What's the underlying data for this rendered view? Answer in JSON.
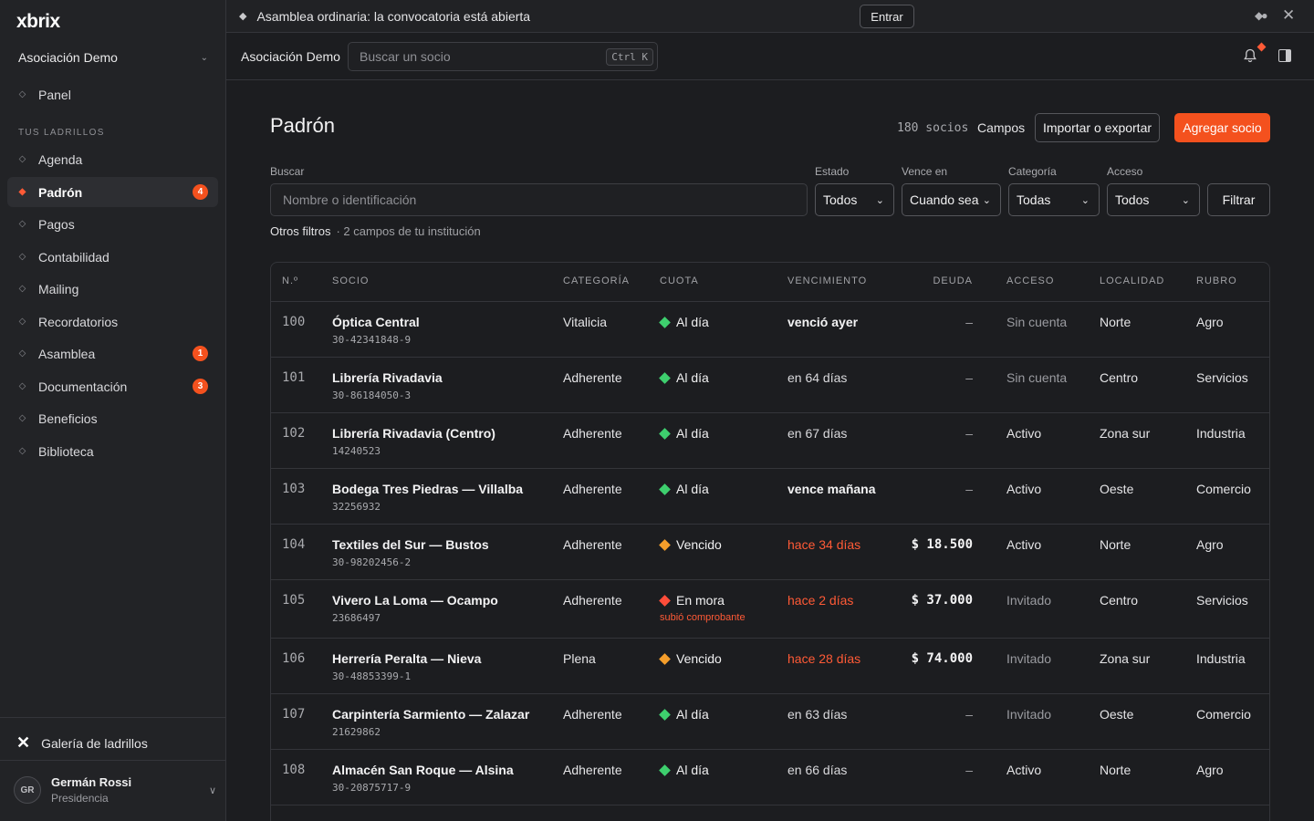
{
  "app": {
    "logo": "xbrix"
  },
  "sidebar": {
    "org": "Asociación Demo",
    "panel": "Panel",
    "section_label": "TUS LADRILLOS",
    "items": [
      {
        "label": "Agenda",
        "badge": ""
      },
      {
        "label": "Padrón",
        "badge": "4",
        "active": true
      },
      {
        "label": "Pagos",
        "badge": ""
      },
      {
        "label": "Contabilidad",
        "badge": ""
      },
      {
        "label": "Mailing",
        "badge": ""
      },
      {
        "label": "Recordatorios",
        "badge": ""
      },
      {
        "label": "Asamblea",
        "badge": "1"
      },
      {
        "label": "Documentación",
        "badge": "3"
      },
      {
        "label": "Beneficios",
        "badge": ""
      },
      {
        "label": "Biblioteca",
        "badge": ""
      }
    ],
    "gallery": "Galería de ladrillos",
    "user": {
      "initials": "GR",
      "name": "Germán Rossi",
      "role": "Presidencia"
    }
  },
  "banner": {
    "text": "Asamblea ordinaria: la convocatoria está abierta",
    "button": "Entrar"
  },
  "topbar": {
    "title": "Asociación Demo",
    "search_placeholder": "Buscar un socio",
    "shortcut": "Ctrl K"
  },
  "page": {
    "title": "Padrón",
    "count": "180 socios",
    "fields_link": "Campos",
    "import_button": "Importar o exportar",
    "add_button": "Agregar socio"
  },
  "filters": {
    "search_label": "Buscar",
    "search_placeholder": "Nombre o identificación",
    "estado_label": "Estado",
    "estado_value": "Todos",
    "vence_label": "Vence en",
    "vence_value": "Cuando sea",
    "categoria_label": "Categoría",
    "categoria_value": "Todas",
    "acceso_label": "Acceso",
    "acceso_value": "Todos",
    "filter_button": "Filtrar",
    "other_filters": "Otros filtros",
    "other_filters_note": "· 2 campos de tu institución"
  },
  "table": {
    "columns": [
      "N.º",
      "SOCIO",
      "CATEGORÍA",
      "CUOTA",
      "VENCIMIENTO",
      "DEUDA",
      "ACCESO",
      "LOCALIDAD",
      "RUBRO"
    ],
    "status_colors": {
      "ok": "#3ecf6e",
      "vencido": "#f59e2b",
      "mora": "#ff4d3a"
    },
    "rows": [
      {
        "num": "100",
        "name": "Óptica Central",
        "id": "30-42341848-9",
        "cat": "Vitalicia",
        "cuota": "Al día",
        "status": "ok",
        "note": "",
        "venc": "venció ayer",
        "venc_style": "bold",
        "deuda": "–",
        "acceso": "Sin cuenta",
        "acc_muted": true,
        "loc": "Norte",
        "rubro": "Agro"
      },
      {
        "num": "101",
        "name": "Librería Rivadavia",
        "id": "30-86184050-3",
        "cat": "Adherente",
        "cuota": "Al día",
        "status": "ok",
        "note": "",
        "venc": "en 64 días",
        "venc_style": "",
        "deuda": "–",
        "acceso": "Sin cuenta",
        "acc_muted": true,
        "loc": "Centro",
        "rubro": "Servicios"
      },
      {
        "num": "102",
        "name": "Librería Rivadavia (Centro)",
        "id": "14240523",
        "cat": "Adherente",
        "cuota": "Al día",
        "status": "ok",
        "note": "",
        "venc": "en 67 días",
        "venc_style": "",
        "deuda": "–",
        "acceso": "Activo",
        "acc_muted": false,
        "loc": "Zona sur",
        "rubro": "Industria"
      },
      {
        "num": "103",
        "name": "Bodega Tres Piedras — Villalba",
        "id": "32256932",
        "cat": "Adherente",
        "cuota": "Al día",
        "status": "ok",
        "note": "",
        "venc": "vence mañana",
        "venc_style": "bold",
        "deuda": "–",
        "acceso": "Activo",
        "acc_muted": false,
        "loc": "Oeste",
        "rubro": "Comercio"
      },
      {
        "num": "104",
        "name": "Textiles del Sur — Bustos",
        "id": "30-98202456-2",
        "cat": "Adherente",
        "cuota": "Vencido",
        "status": "vencido",
        "note": "",
        "venc": "hace 34 días",
        "venc_style": "red",
        "deuda": "$ 18.500",
        "acceso": "Activo",
        "acc_muted": false,
        "loc": "Norte",
        "rubro": "Agro"
      },
      {
        "num": "105",
        "name": "Vivero La Loma — Ocampo",
        "id": "23686497",
        "cat": "Adherente",
        "cuota": "En mora",
        "status": "mora",
        "note": "subió comprobante",
        "venc": "hace 2 días",
        "venc_style": "red",
        "deuda": "$ 37.000",
        "acceso": "Invitado",
        "acc_muted": true,
        "loc": "Centro",
        "rubro": "Servicios"
      },
      {
        "num": "106",
        "name": "Herrería Peralta — Nieva",
        "id": "30-48853399-1",
        "cat": "Plena",
        "cuota": "Vencido",
        "status": "vencido",
        "note": "",
        "venc": "hace 28 días",
        "venc_style": "red",
        "deuda": "$ 74.000",
        "acceso": "Invitado",
        "acc_muted": true,
        "loc": "Zona sur",
        "rubro": "Industria"
      },
      {
        "num": "107",
        "name": "Carpintería Sarmiento — Zalazar",
        "id": "21629862",
        "cat": "Adherente",
        "cuota": "Al día",
        "status": "ok",
        "note": "",
        "venc": "en 63 días",
        "venc_style": "",
        "deuda": "–",
        "acceso": "Invitado",
        "acc_muted": true,
        "loc": "Oeste",
        "rubro": "Comercio"
      },
      {
        "num": "108",
        "name": "Almacén San Roque — Alsina",
        "id": "30-20875717-9",
        "cat": "Adherente",
        "cuota": "Al día",
        "status": "ok",
        "note": "",
        "venc": "en 66 días",
        "venc_style": "",
        "deuda": "–",
        "acceso": "Activo",
        "acc_muted": false,
        "loc": "Norte",
        "rubro": "Agro"
      }
    ]
  }
}
